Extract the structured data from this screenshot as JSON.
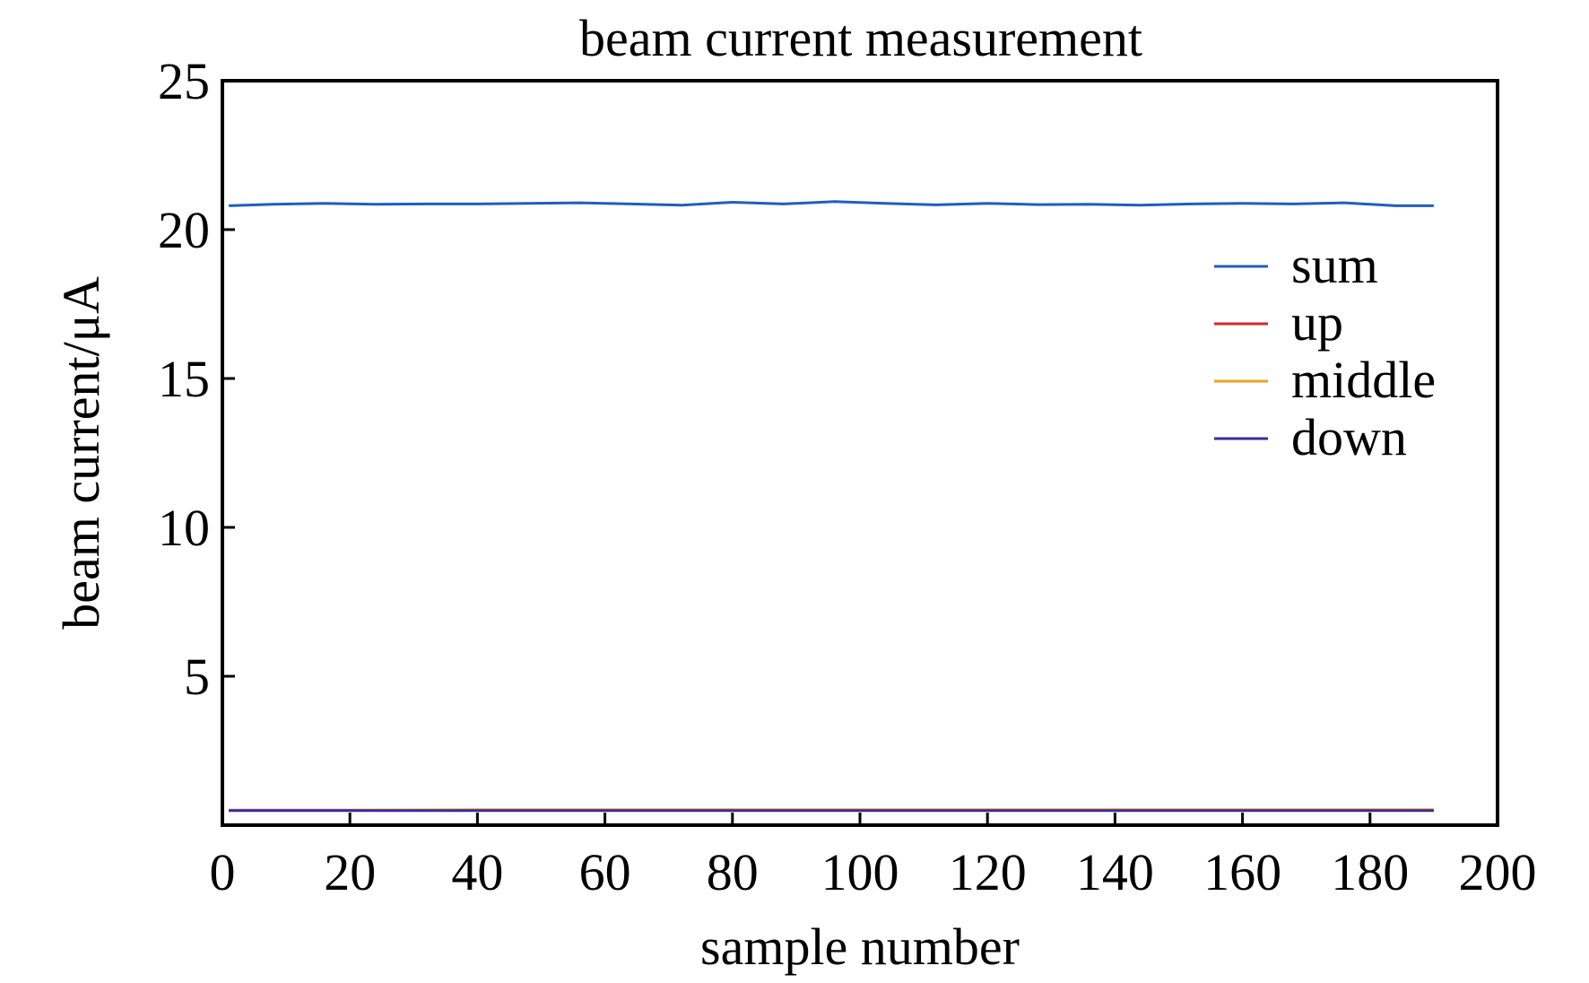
{
  "chart_data": {
    "type": "line",
    "title": "beam current measurement",
    "xlabel": "sample number",
    "ylabel": "beam current/μA",
    "xlim": [
      0,
      200
    ],
    "ylim": [
      0,
      25
    ],
    "xticks": [
      0,
      20,
      40,
      60,
      80,
      100,
      120,
      140,
      160,
      180,
      200
    ],
    "yticks": [
      5,
      10,
      15,
      20,
      25
    ],
    "grid": false,
    "legend_position": "right",
    "series": [
      {
        "name": "sum",
        "color": "#1f5fbf",
        "x": [
          1,
          8,
          16,
          24,
          32,
          40,
          48,
          56,
          64,
          72,
          80,
          88,
          96,
          104,
          112,
          120,
          128,
          136,
          144,
          152,
          160,
          168,
          176,
          184,
          190
        ],
        "y": [
          20.8,
          20.85,
          20.88,
          20.85,
          20.86,
          20.86,
          20.88,
          20.9,
          20.86,
          20.82,
          20.92,
          20.86,
          20.94,
          20.88,
          20.83,
          20.88,
          20.84,
          20.85,
          20.82,
          20.86,
          20.88,
          20.86,
          20.9,
          20.8,
          20.8
        ]
      },
      {
        "name": "up",
        "color": "#d62728",
        "x": [
          1,
          40,
          80,
          120,
          160,
          190
        ],
        "y": [
          0.5,
          0.5,
          0.5,
          0.5,
          0.5,
          0.5
        ]
      },
      {
        "name": "middle",
        "color": "#f0a020",
        "x": [
          1,
          20,
          40,
          60,
          80,
          100,
          120,
          140,
          160,
          180,
          190
        ],
        "y": [
          0.5,
          0.5,
          0.52,
          0.52,
          0.52,
          0.52,
          0.52,
          0.52,
          0.52,
          0.52,
          0.52
        ]
      },
      {
        "name": "down",
        "color": "#3b2a9e",
        "x": [
          1,
          40,
          80,
          120,
          160,
          190
        ],
        "y": [
          0.49,
          0.49,
          0.49,
          0.49,
          0.49,
          0.49
        ]
      }
    ]
  }
}
